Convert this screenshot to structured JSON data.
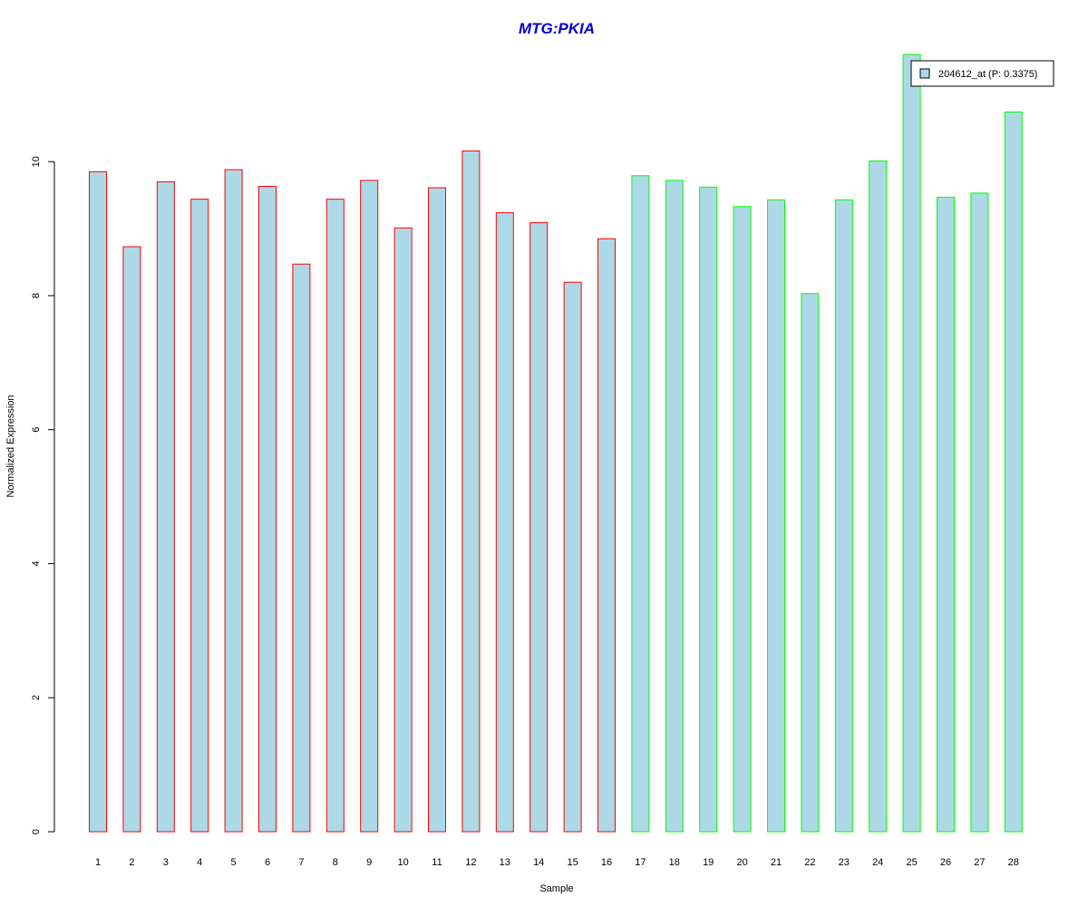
{
  "chart_data": {
    "type": "bar",
    "title": "MTG:PKIA",
    "xlabel": "Sample",
    "ylabel": "Normalized Expression",
    "ylim": [
      0,
      11.6
    ],
    "yticks": [
      0,
      2,
      4,
      6,
      8,
      10
    ],
    "categories": [
      "1",
      "2",
      "3",
      "4",
      "5",
      "6",
      "7",
      "8",
      "9",
      "10",
      "11",
      "12",
      "13",
      "14",
      "15",
      "16",
      "17",
      "18",
      "19",
      "20",
      "21",
      "22",
      "23",
      "24",
      "25",
      "26",
      "27",
      "28"
    ],
    "series": [
      {
        "name": "204612_at (P: 0.3375)",
        "values": [
          9.85,
          8.73,
          9.7,
          9.44,
          9.88,
          9.63,
          8.47,
          9.44,
          9.72,
          9.01,
          9.61,
          10.16,
          9.24,
          9.09,
          8.2,
          8.85,
          9.79,
          9.72,
          9.62,
          9.33,
          9.43,
          8.03,
          9.43,
          10.01,
          11.6,
          9.47,
          9.53,
          10.74
        ]
      }
    ],
    "bar_fill": "#add8e6",
    "group_border_colors": [
      "#ff0000",
      "#00ff00"
    ],
    "group_sizes": [
      16,
      12
    ],
    "title_color": "#0000cc",
    "legend_position": "top-right",
    "grid": false
  }
}
